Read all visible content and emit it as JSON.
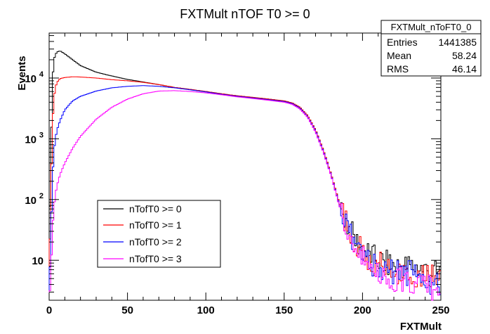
{
  "chart_data": {
    "type": "line",
    "title": "FXTMult nTOF T0 >= 0",
    "xlabel": "FXTMult",
    "ylabel": "Events",
    "xlim": [
      0,
      250
    ],
    "ylim": [
      2.2,
      55000
    ],
    "y_scale": "log",
    "x_ticks": [
      0,
      50,
      100,
      150,
      200,
      250
    ],
    "x_tick_labels": [
      "0",
      "50",
      "100",
      "150",
      "200",
      "250"
    ],
    "y_ticks": [
      10,
      100,
      1000,
      10000
    ],
    "y_tick_labels": [
      "10",
      "10",
      "10",
      "10"
    ],
    "y_tick_exponents": [
      "",
      "2",
      "3",
      "4"
    ],
    "grid": false,
    "legend_position": "bottom-left",
    "stats": {
      "name": "FXTMult_nToFT0_0",
      "rows": [
        {
          "label": "Entries",
          "value": "1441385"
        },
        {
          "label": "Mean",
          "value": "58.24"
        },
        {
          "label": "RMS",
          "value": "46.14"
        }
      ]
    },
    "x": [
      0,
      1,
      2,
      3,
      4,
      5,
      7,
      10,
      15,
      20,
      30,
      40,
      50,
      60,
      70,
      80,
      90,
      100,
      110,
      120,
      130,
      140,
      150,
      155,
      160,
      165,
      170,
      175,
      180,
      185,
      190,
      195,
      200,
      205,
      210,
      220,
      230,
      240,
      248
    ],
    "series": [
      {
        "name": "nTofT0 >= 0",
        "color": "#000000",
        "values": [
          20,
          300,
          8000,
          20000,
          24000,
          27000,
          28000,
          25000,
          20000,
          16000,
          12500,
          10800,
          9500,
          8600,
          7800,
          7000,
          6500,
          6000,
          5500,
          5100,
          4800,
          4500,
          4200,
          3900,
          3300,
          2400,
          1400,
          650,
          260,
          90,
          40,
          22,
          15,
          12,
          10,
          8,
          8,
          7,
          6
        ]
      },
      {
        "name": "nTofT0 >= 1",
        "color": "#ff0000",
        "values": [
          5,
          100,
          1500,
          4500,
          7000,
          8500,
          9800,
          10200,
          10500,
          10400,
          10000,
          9400,
          9000,
          8500,
          7800,
          7000,
          6500,
          6000,
          5500,
          5100,
          4800,
          4500,
          4200,
          3900,
          3300,
          2400,
          1400,
          650,
          260,
          90,
          40,
          20,
          13,
          10,
          9,
          7,
          6,
          6,
          5
        ]
      },
      {
        "name": "nTofT0 >= 2",
        "color": "#0000ff",
        "values": [
          3,
          20,
          200,
          600,
          1000,
          1400,
          2000,
          3000,
          4200,
          5000,
          6100,
          6900,
          7300,
          7500,
          7300,
          6900,
          6400,
          5900,
          5400,
          5000,
          4700,
          4400,
          4100,
          3800,
          3200,
          2300,
          1350,
          620,
          250,
          85,
          38,
          19,
          12,
          9,
          8,
          6,
          6,
          5,
          4
        ]
      },
      {
        "name": "nTofT0 >= 3",
        "color": "#ff00ff",
        "values": [
          2,
          5,
          30,
          70,
          120,
          170,
          260,
          400,
          700,
          1100,
          2100,
          3300,
          4500,
          5500,
          6100,
          6200,
          6000,
          5700,
          5300,
          4900,
          4600,
          4300,
          4000,
          3700,
          3100,
          2250,
          1300,
          600,
          245,
          82,
          36,
          18,
          11,
          8,
          7,
          5,
          5,
          4,
          3
        ]
      }
    ]
  }
}
